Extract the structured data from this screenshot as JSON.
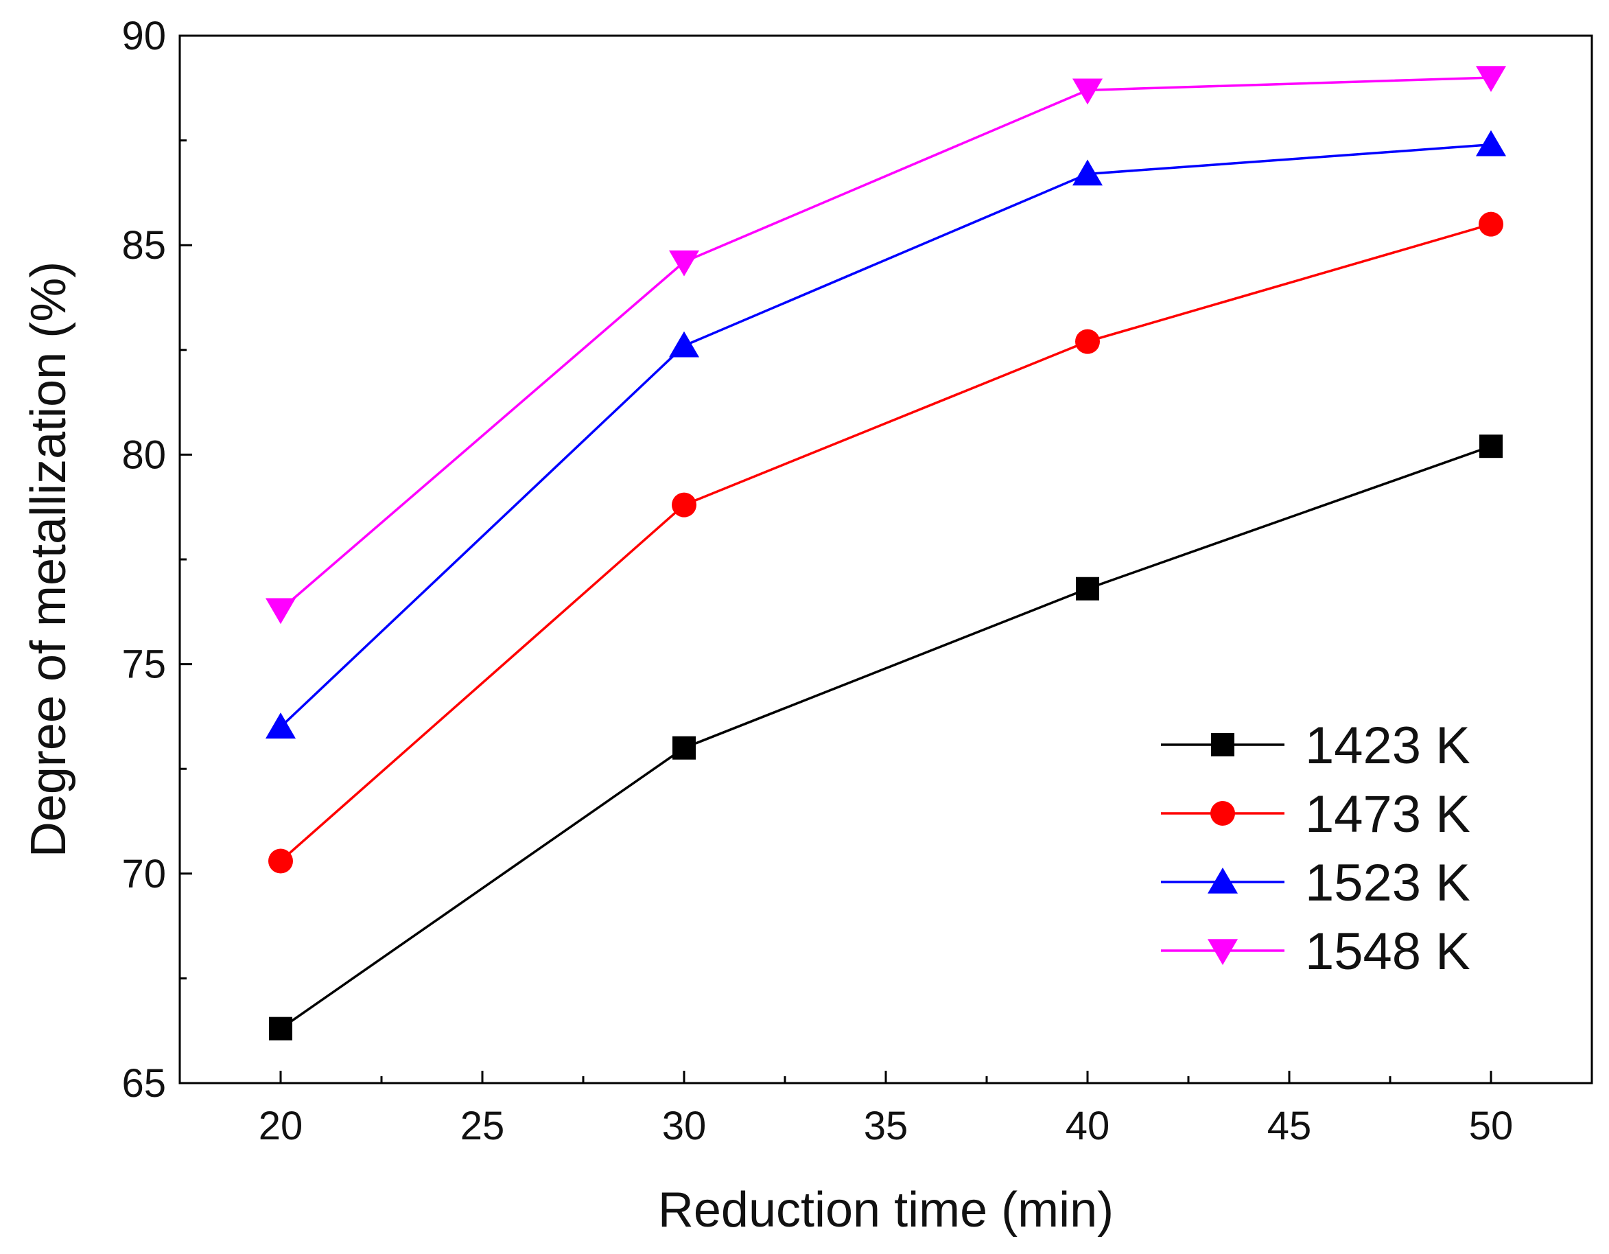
{
  "chart_data": {
    "type": "line",
    "title": "",
    "xlabel": "Reduction time (min)",
    "ylabel": "Degree of metallization (%)",
    "xlim": [
      17.5,
      52.5
    ],
    "ylim": [
      65,
      90
    ],
    "x_ticks": [
      20,
      25,
      30,
      35,
      40,
      45,
      50
    ],
    "y_ticks": [
      65,
      70,
      75,
      80,
      85,
      90
    ],
    "x_tick_labels": [
      "20",
      "25",
      "30",
      "35",
      "40",
      "45",
      "50"
    ],
    "y_tick_labels": [
      "65",
      "70",
      "75",
      "80",
      "85",
      "90"
    ],
    "x": [
      20,
      30,
      40,
      50
    ],
    "grid": false,
    "legend_position": "bottom-right",
    "series": [
      {
        "name": "1423 K",
        "values": [
          66.3,
          73.0,
          76.8,
          80.2
        ],
        "color": "#000000",
        "marker": "square"
      },
      {
        "name": "1473 K",
        "values": [
          70.3,
          78.8,
          82.7,
          85.5
        ],
        "color": "#ff0000",
        "marker": "circle"
      },
      {
        "name": "1523 K",
        "values": [
          73.5,
          82.6,
          86.7,
          87.4
        ],
        "color": "#0000ff",
        "marker": "triangle-up"
      },
      {
        "name": "1548 K",
        "values": [
          76.3,
          84.6,
          88.7,
          89.0
        ],
        "color": "#ff00ff",
        "marker": "triangle-down"
      }
    ]
  }
}
